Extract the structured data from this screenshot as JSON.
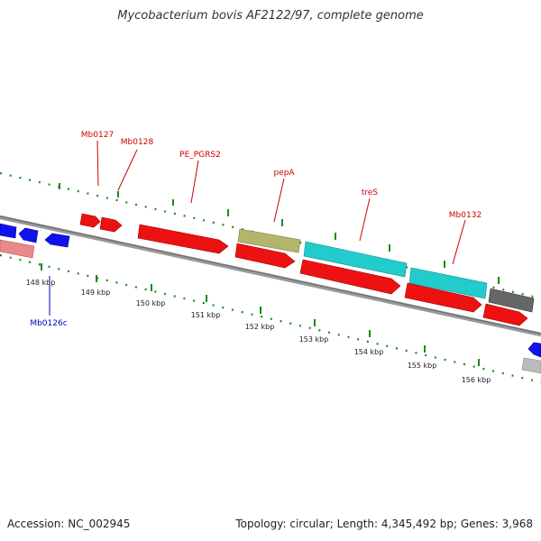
{
  "title": "Mycobacterium bovis AF2122/97, complete genome",
  "footer": {
    "accession": "Accession: NC_002945",
    "summary": "Topology: circular; Length: 4,345,492 bp; Genes: 3,968"
  },
  "scale_labels": [
    "148 kbp",
    "149 kbp",
    "150 kbp",
    "151 kbp",
    "152 kbp",
    "153 kbp",
    "154 kbp",
    "155 kbp",
    "156 kbp"
  ],
  "gene_labels": {
    "mb0127": "Mb0127",
    "mb0128": "Mb0128",
    "pe_pgrs2": "PE_PGRS2",
    "pepa": "pepA",
    "tres": "treS",
    "mb0132": "Mb0132",
    "mb0126c": "Mb0126c"
  },
  "colors": {
    "forward": "#ee1111",
    "reverse": "#1111ee",
    "cyan": "#22cccc",
    "olive": "#b5b46c",
    "gray": "#666666",
    "light_gray": "#bbbbbb",
    "pink": "#e88a8a",
    "tick": "#1a8a1a",
    "backbone": "#888888",
    "forward_label": "#cc0000",
    "reverse_label": "#0000bb"
  }
}
